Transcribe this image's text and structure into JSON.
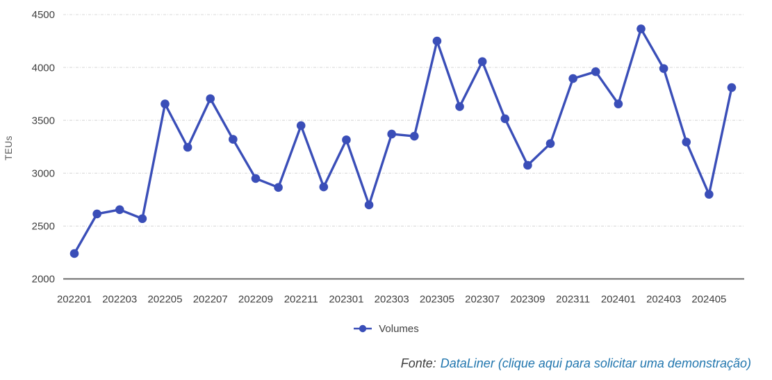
{
  "chart_data": {
    "type": "line",
    "title": "",
    "xlabel": "",
    "ylabel": "TEUs",
    "x": [
      "202201",
      "202202",
      "202203",
      "202204",
      "202205",
      "202206",
      "202207",
      "202208",
      "202209",
      "202210",
      "202211",
      "202212",
      "202301",
      "202302",
      "202303",
      "202304",
      "202305",
      "202306",
      "202307",
      "202308",
      "202309",
      "202310",
      "202311",
      "202312",
      "202401",
      "202402",
      "202403",
      "202404",
      "202405",
      "202406"
    ],
    "series": [
      {
        "name": "Volumes",
        "values": [
          2240,
          2615,
          2655,
          2570,
          3655,
          3245,
          3705,
          3320,
          2950,
          2865,
          3450,
          2870,
          3315,
          2700,
          3370,
          3350,
          4250,
          3630,
          4055,
          3515,
          3075,
          3280,
          3895,
          3960,
          3655,
          4365,
          3990,
          3295,
          2800,
          3810
        ]
      }
    ],
    "x_tick_labels": [
      "202201",
      "202203",
      "202205",
      "202207",
      "202209",
      "202211",
      "202301",
      "202303",
      "202305",
      "202307",
      "202309",
      "202311",
      "202401",
      "202403",
      "202405"
    ],
    "y_ticks": [
      2000,
      2500,
      3000,
      3500,
      4000,
      4500
    ],
    "ylim": [
      2000,
      4500
    ],
    "grid": "horizontal-dashed",
    "legend_position": "bottom-center",
    "line_color": "#3a4eb8",
    "marker": "circle"
  },
  "legend": {
    "label": "Volumes"
  },
  "footer": {
    "prefix": "Fonte:",
    "link_text": "DataLiner (clique aqui para solicitar uma demonstração)"
  },
  "colors": {
    "accent": "#3a4eb8",
    "grid": "#d9d9d9",
    "axis": "#595959",
    "tick_text": "#404040",
    "link": "#2176ae"
  }
}
